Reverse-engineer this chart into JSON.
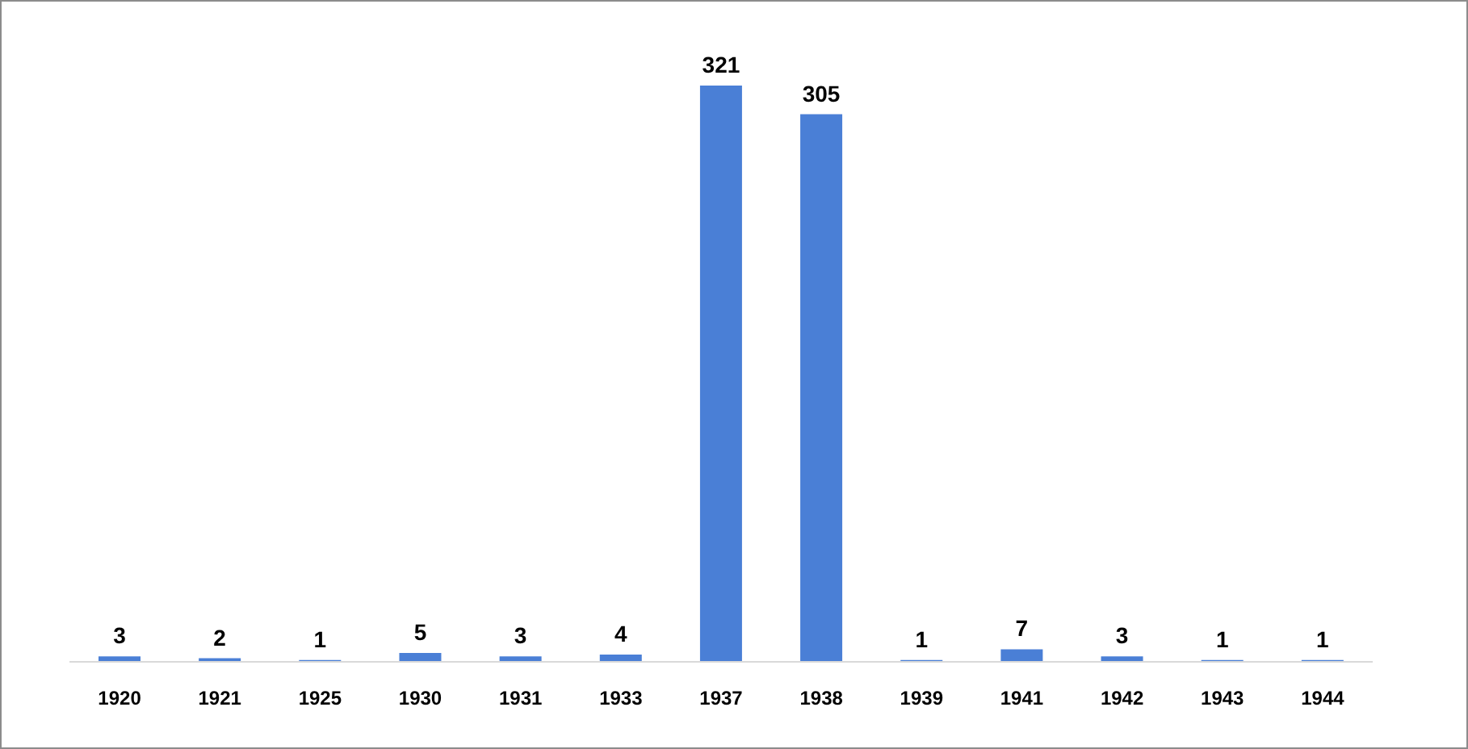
{
  "chart_data": {
    "type": "bar",
    "categories": [
      "1920",
      "1921",
      "1925",
      "1930",
      "1931",
      "1933",
      "1937",
      "1938",
      "1939",
      "1941",
      "1942",
      "1943",
      "1944"
    ],
    "values": [
      3,
      2,
      1,
      5,
      3,
      4,
      321,
      305,
      1,
      7,
      3,
      1,
      1
    ],
    "color": "#4a7fd6",
    "data_labels": true,
    "grid": false,
    "legend": false
  }
}
